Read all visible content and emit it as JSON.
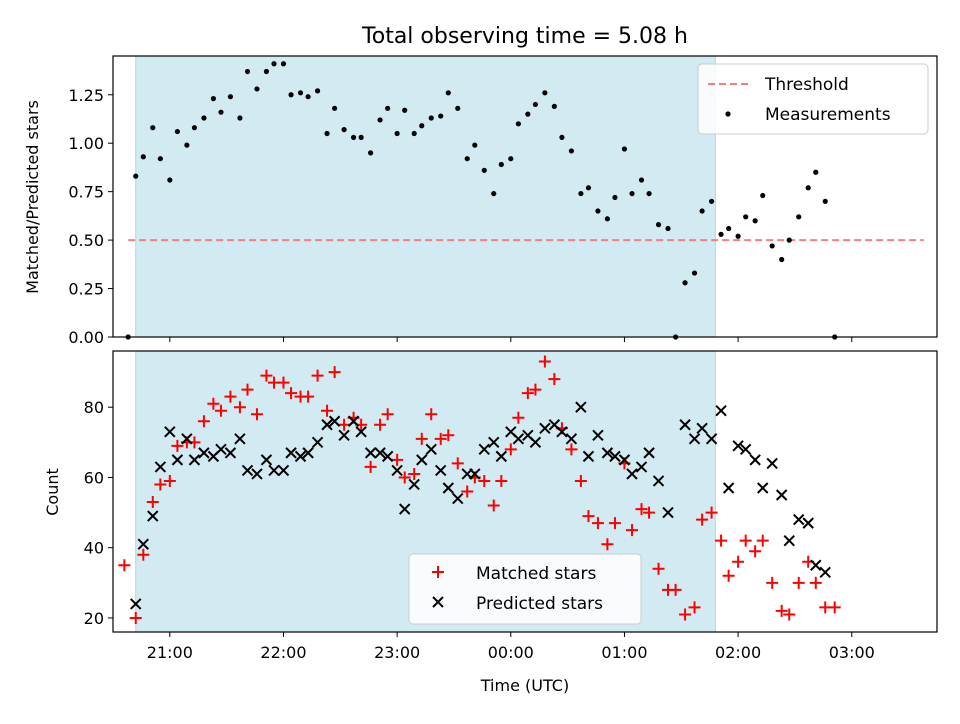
{
  "figure": {
    "title": "Total observing time = 5.08 h"
  },
  "chart_data": [
    {
      "type": "scatter",
      "ylabel": "Matched/Predicted stars",
      "xlabel": "",
      "ylim": [
        0,
        1.45
      ],
      "xlim": [
        "20:30",
        "03:45"
      ],
      "x_tick_labels_visible": false,
      "yticks": [
        "0.00",
        "0.25",
        "0.50",
        "0.75",
        "1.00",
        "1.25"
      ],
      "shaded_interval": {
        "start": "20:42",
        "end": "01:48",
        "color": "#add8e6"
      },
      "threshold": {
        "name": "Threshold",
        "value": 0.5,
        "start": "20:38",
        "end": "03:38",
        "color": "#f28080"
      },
      "legend": {
        "placement": "top-right",
        "entries": [
          "Threshold",
          "Measurements"
        ]
      },
      "series": [
        {
          "name": "Measurements",
          "marker": "dot",
          "color": "#000000",
          "points": [
            [
              "20:38",
              0.0
            ],
            [
              "20:42",
              0.83
            ],
            [
              "20:46",
              0.93
            ],
            [
              "20:51",
              1.08
            ],
            [
              "20:55",
              0.92
            ],
            [
              "21:00",
              0.81
            ],
            [
              "21:04",
              1.06
            ],
            [
              "21:09",
              0.99
            ],
            [
              "21:13",
              1.08
            ],
            [
              "21:18",
              1.13
            ],
            [
              "21:23",
              1.23
            ],
            [
              "21:27",
              1.16
            ],
            [
              "21:32",
              1.24
            ],
            [
              "21:37",
              1.13
            ],
            [
              "21:41",
              1.37
            ],
            [
              "21:46",
              1.28
            ],
            [
              "21:51",
              1.37
            ],
            [
              "21:55",
              1.41
            ],
            [
              "22:00",
              1.41
            ],
            [
              "22:04",
              1.25
            ],
            [
              "22:09",
              1.26
            ],
            [
              "22:13",
              1.24
            ],
            [
              "22:18",
              1.27
            ],
            [
              "22:23",
              1.05
            ],
            [
              "22:27",
              1.18
            ],
            [
              "22:32",
              1.07
            ],
            [
              "22:37",
              1.03
            ],
            [
              "22:41",
              1.03
            ],
            [
              "22:46",
              0.95
            ],
            [
              "22:51",
              1.12
            ],
            [
              "22:55",
              1.18
            ],
            [
              "23:00",
              1.05
            ],
            [
              "23:04",
              1.17
            ],
            [
              "23:09",
              1.05
            ],
            [
              "23:13",
              1.09
            ],
            [
              "23:18",
              1.13
            ],
            [
              "23:23",
              1.14
            ],
            [
              "23:27",
              1.26
            ],
            [
              "23:32",
              1.18
            ],
            [
              "23:37",
              0.92
            ],
            [
              "23:41",
              0.99
            ],
            [
              "23:46",
              0.86
            ],
            [
              "23:51",
              0.74
            ],
            [
              "23:55",
              0.89
            ],
            [
              "00:00",
              0.92
            ],
            [
              "00:04",
              1.1
            ],
            [
              "00:09",
              1.15
            ],
            [
              "00:13",
              1.2
            ],
            [
              "00:18",
              1.26
            ],
            [
              "00:23",
              1.19
            ],
            [
              "00:27",
              1.03
            ],
            [
              "00:32",
              0.96
            ],
            [
              "00:37",
              0.74
            ],
            [
              "00:41",
              0.77
            ],
            [
              "00:46",
              0.65
            ],
            [
              "00:51",
              0.61
            ],
            [
              "00:55",
              0.72
            ],
            [
              "01:00",
              0.97
            ],
            [
              "01:04",
              0.74
            ],
            [
              "01:09",
              0.81
            ],
            [
              "01:13",
              0.74
            ],
            [
              "01:18",
              0.58
            ],
            [
              "01:23",
              0.56
            ],
            [
              "01:27",
              0.0
            ],
            [
              "01:32",
              0.28
            ],
            [
              "01:37",
              0.33
            ],
            [
              "01:41",
              0.65
            ],
            [
              "01:46",
              0.7
            ],
            [
              "01:51",
              0.53
            ],
            [
              "01:55",
              0.56
            ],
            [
              "02:00",
              0.52
            ],
            [
              "02:04",
              0.62
            ],
            [
              "02:09",
              0.6
            ],
            [
              "02:13",
              0.73
            ],
            [
              "02:18",
              0.47
            ],
            [
              "02:23",
              0.4
            ],
            [
              "02:27",
              0.5
            ],
            [
              "02:32",
              0.62
            ],
            [
              "02:37",
              0.77
            ],
            [
              "02:41",
              0.85
            ],
            [
              "02:46",
              0.7
            ],
            [
              "02:51",
              0.0
            ]
          ]
        }
      ]
    },
    {
      "type": "scatter",
      "ylabel": "Count",
      "xlabel": "Time (UTC)",
      "ylim": [
        16,
        96
      ],
      "xlim": [
        "20:30",
        "03:45"
      ],
      "xticks": [
        "21:00",
        "22:00",
        "23:00",
        "00:00",
        "01:00",
        "02:00",
        "03:00"
      ],
      "yticks": [
        "20",
        "40",
        "60",
        "80"
      ],
      "shaded_interval": {
        "start": "20:42",
        "end": "01:48",
        "color": "#add8e6"
      },
      "legend": {
        "placement": "lower-center",
        "entries": [
          "Matched stars",
          "Predicted stars"
        ]
      },
      "series": [
        {
          "name": "Matched stars",
          "marker": "plus",
          "color": "#ff0000",
          "points": [
            [
              "20:36",
              35
            ],
            [
              "20:42",
              20
            ],
            [
              "20:46",
              38
            ],
            [
              "20:51",
              53
            ],
            [
              "20:55",
              58
            ],
            [
              "21:00",
              59
            ],
            [
              "21:04",
              69
            ],
            [
              "21:09",
              70
            ],
            [
              "21:13",
              70
            ],
            [
              "21:18",
              76
            ],
            [
              "21:23",
              81
            ],
            [
              "21:27",
              79
            ],
            [
              "21:32",
              83
            ],
            [
              "21:37",
              80
            ],
            [
              "21:41",
              85
            ],
            [
              "21:46",
              78
            ],
            [
              "21:51",
              89
            ],
            [
              "21:55",
              87
            ],
            [
              "22:00",
              87
            ],
            [
              "22:04",
              84
            ],
            [
              "22:09",
              83
            ],
            [
              "22:13",
              83
            ],
            [
              "22:18",
              89
            ],
            [
              "22:23",
              79
            ],
            [
              "22:27",
              90
            ],
            [
              "22:32",
              75
            ],
            [
              "22:37",
              77
            ],
            [
              "22:41",
              75
            ],
            [
              "22:46",
              63
            ],
            [
              "22:51",
              75
            ],
            [
              "22:55",
              78
            ],
            [
              "23:00",
              65
            ],
            [
              "23:04",
              60
            ],
            [
              "23:09",
              61
            ],
            [
              "23:13",
              71
            ],
            [
              "23:18",
              78
            ],
            [
              "23:23",
              71
            ],
            [
              "23:27",
              72
            ],
            [
              "23:32",
              64
            ],
            [
              "23:37",
              56
            ],
            [
              "23:41",
              60
            ],
            [
              "23:46",
              59
            ],
            [
              "23:51",
              52
            ],
            [
              "23:55",
              59
            ],
            [
              "00:00",
              68
            ],
            [
              "00:04",
              77
            ],
            [
              "00:09",
              84
            ],
            [
              "00:13",
              85
            ],
            [
              "00:18",
              93
            ],
            [
              "00:23",
              88
            ],
            [
              "00:27",
              74
            ],
            [
              "00:32",
              68
            ],
            [
              "00:37",
              59
            ],
            [
              "00:41",
              49
            ],
            [
              "00:46",
              47
            ],
            [
              "00:51",
              41
            ],
            [
              "00:55",
              47
            ],
            [
              "01:00",
              64
            ],
            [
              "01:04",
              45
            ],
            [
              "01:09",
              51
            ],
            [
              "01:13",
              50
            ],
            [
              "01:18",
              34
            ],
            [
              "01:23",
              28
            ],
            [
              "01:27",
              28
            ],
            [
              "01:32",
              21
            ],
            [
              "01:37",
              23
            ],
            [
              "01:41",
              48
            ],
            [
              "01:46",
              50
            ],
            [
              "01:51",
              42
            ],
            [
              "01:55",
              32
            ],
            [
              "02:00",
              36
            ],
            [
              "02:04",
              42
            ],
            [
              "02:09",
              39
            ],
            [
              "02:13",
              42
            ],
            [
              "02:18",
              30
            ],
            [
              "02:23",
              22
            ],
            [
              "02:27",
              21
            ],
            [
              "02:32",
              30
            ],
            [
              "02:37",
              36
            ],
            [
              "02:41",
              30
            ],
            [
              "02:46",
              23
            ],
            [
              "02:51",
              23
            ]
          ]
        },
        {
          "name": "Predicted stars",
          "marker": "x",
          "color": "#000000",
          "points": [
            [
              "20:42",
              24
            ],
            [
              "20:46",
              41
            ],
            [
              "20:51",
              49
            ],
            [
              "20:55",
              63
            ],
            [
              "21:00",
              73
            ],
            [
              "21:04",
              65
            ],
            [
              "21:09",
              71
            ],
            [
              "21:13",
              65
            ],
            [
              "21:18",
              67
            ],
            [
              "21:23",
              66
            ],
            [
              "21:27",
              68
            ],
            [
              "21:32",
              67
            ],
            [
              "21:37",
              71
            ],
            [
              "21:41",
              62
            ],
            [
              "21:46",
              61
            ],
            [
              "21:51",
              65
            ],
            [
              "21:55",
              62
            ],
            [
              "22:00",
              62
            ],
            [
              "22:04",
              67
            ],
            [
              "22:09",
              66
            ],
            [
              "22:13",
              67
            ],
            [
              "22:18",
              70
            ],
            [
              "22:23",
              75
            ],
            [
              "22:27",
              76
            ],
            [
              "22:32",
              72
            ],
            [
              "22:37",
              76
            ],
            [
              "22:41",
              73
            ],
            [
              "22:46",
              67
            ],
            [
              "22:51",
              67
            ],
            [
              "22:55",
              66
            ],
            [
              "23:00",
              62
            ],
            [
              "23:04",
              51
            ],
            [
              "23:09",
              58
            ],
            [
              "23:13",
              65
            ],
            [
              "23:18",
              68
            ],
            [
              "23:23",
              62
            ],
            [
              "23:27",
              57
            ],
            [
              "23:32",
              54
            ],
            [
              "23:37",
              61
            ],
            [
              "23:41",
              61
            ],
            [
              "23:46",
              68
            ],
            [
              "23:51",
              70
            ],
            [
              "23:55",
              66
            ],
            [
              "00:00",
              73
            ],
            [
              "00:04",
              71
            ],
            [
              "00:09",
              72
            ],
            [
              "00:13",
              70
            ],
            [
              "00:18",
              74
            ],
            [
              "00:23",
              75
            ],
            [
              "00:27",
              73
            ],
            [
              "00:32",
              71
            ],
            [
              "00:37",
              80
            ],
            [
              "00:41",
              66
            ],
            [
              "00:46",
              72
            ],
            [
              "00:51",
              67
            ],
            [
              "00:55",
              66
            ],
            [
              "01:00",
              65
            ],
            [
              "01:04",
              61
            ],
            [
              "01:09",
              63
            ],
            [
              "01:13",
              67
            ],
            [
              "01:18",
              59
            ],
            [
              "01:23",
              50
            ],
            [
              "01:32",
              75
            ],
            [
              "01:37",
              71
            ],
            [
              "01:41",
              74
            ],
            [
              "01:46",
              71
            ],
            [
              "01:51",
              79
            ],
            [
              "01:55",
              57
            ],
            [
              "02:00",
              69
            ],
            [
              "02:04",
              68
            ],
            [
              "02:09",
              65
            ],
            [
              "02:13",
              57
            ],
            [
              "02:18",
              64
            ],
            [
              "02:23",
              55
            ],
            [
              "02:27",
              42
            ],
            [
              "02:32",
              48
            ],
            [
              "02:37",
              47
            ],
            [
              "02:41",
              35
            ],
            [
              "02:46",
              33
            ]
          ]
        }
      ]
    }
  ]
}
